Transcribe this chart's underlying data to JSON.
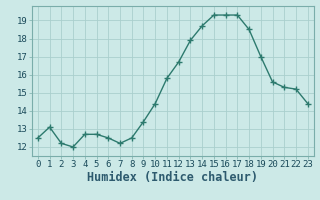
{
  "x": [
    0,
    1,
    2,
    3,
    4,
    5,
    6,
    7,
    8,
    9,
    10,
    11,
    12,
    13,
    14,
    15,
    16,
    17,
    18,
    19,
    20,
    21,
    22,
    23
  ],
  "y": [
    12.5,
    13.1,
    12.2,
    12.0,
    12.7,
    12.7,
    12.5,
    12.2,
    12.5,
    13.4,
    14.4,
    15.8,
    16.7,
    17.9,
    18.7,
    19.3,
    19.3,
    19.3,
    18.5,
    17.0,
    15.6,
    15.3,
    15.2,
    14.4
  ],
  "line_color": "#2d7a6e",
  "marker": "+",
  "marker_size": 4,
  "background_color": "#cce9e7",
  "grid_color": "#aacfcd",
  "xlabel": "Humidex (Indice chaleur)",
  "xlim": [
    -0.5,
    23.5
  ],
  "ylim": [
    11.5,
    19.8
  ],
  "yticks": [
    12,
    13,
    14,
    15,
    16,
    17,
    18,
    19
  ],
  "xticks": [
    0,
    1,
    2,
    3,
    4,
    5,
    6,
    7,
    8,
    9,
    10,
    11,
    12,
    13,
    14,
    15,
    16,
    17,
    18,
    19,
    20,
    21,
    22,
    23
  ],
  "xtick_labels": [
    "0",
    "1",
    "2",
    "3",
    "4",
    "5",
    "6",
    "7",
    "8",
    "9",
    "10",
    "11",
    "12",
    "13",
    "14",
    "15",
    "16",
    "17",
    "18",
    "19",
    "20",
    "21",
    "22",
    "23"
  ],
  "tick_fontsize": 6.5,
  "xlabel_fontsize": 8.5,
  "line_width": 1.0
}
